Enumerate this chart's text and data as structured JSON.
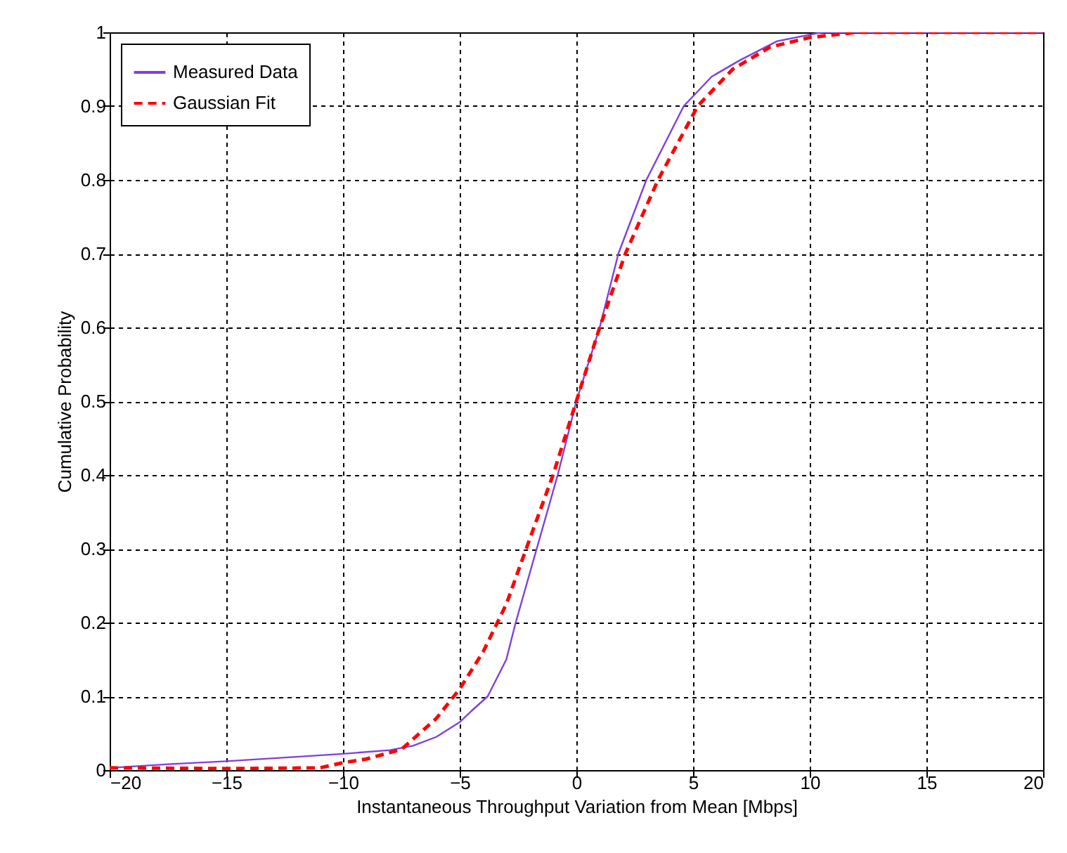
{
  "chart_data": {
    "type": "line",
    "xlabel": "Instantaneous Throughput Variation from Mean [Mbps]",
    "ylabel": "Cumulative Probability",
    "xlim": [
      -20,
      20
    ],
    "xticks": [
      -20,
      -15,
      -10,
      -5,
      0,
      5,
      10,
      15,
      20
    ],
    "ylim": [
      0,
      1
    ],
    "yticks": [
      0,
      0.1,
      0.2,
      0.3,
      0.4,
      0.5,
      0.6,
      0.7,
      0.8,
      0.9,
      1
    ],
    "grid": true,
    "legend": "top left",
    "series": [
      {
        "name": "Measured Data",
        "color": "#7f3fdf",
        "line_style": "solid",
        "x": [
          -20,
          -17.5,
          -15,
          -12,
          -10,
          -8,
          -7,
          -6,
          -5,
          -4.5,
          -3.8,
          -3,
          -2.6,
          -1.7,
          -0.8,
          0,
          1,
          1.8,
          3,
          4.6,
          5.8,
          7,
          8.6,
          10.5,
          20
        ],
        "values": [
          0.003,
          0.008,
          0.012,
          0.018,
          0.022,
          0.027,
          0.033,
          0.045,
          0.065,
          0.08,
          0.1,
          0.15,
          0.2,
          0.3,
          0.4,
          0.5,
          0.6,
          0.7,
          0.8,
          0.9,
          0.94,
          0.962,
          0.988,
          1,
          1
        ]
      },
      {
        "name": "Gaussian Fit",
        "color": "#ff0000",
        "line_style": "dashed",
        "x": [
          -20,
          -15,
          -11,
          -10,
          -9,
          -7.5,
          -6,
          -5,
          -4,
          -3,
          -2.15,
          -1,
          0,
          1,
          2.1,
          3.5,
          5.2,
          6.7,
          8.3,
          10,
          12,
          20
        ],
        "values": [
          0.003,
          0.002,
          0.003,
          0.01,
          0.015,
          0.028,
          0.07,
          0.11,
          0.16,
          0.225,
          0.3,
          0.4,
          0.5,
          0.6,
          0.7,
          0.8,
          0.9,
          0.95,
          0.98,
          0.993,
          1,
          1
        ]
      }
    ]
  }
}
